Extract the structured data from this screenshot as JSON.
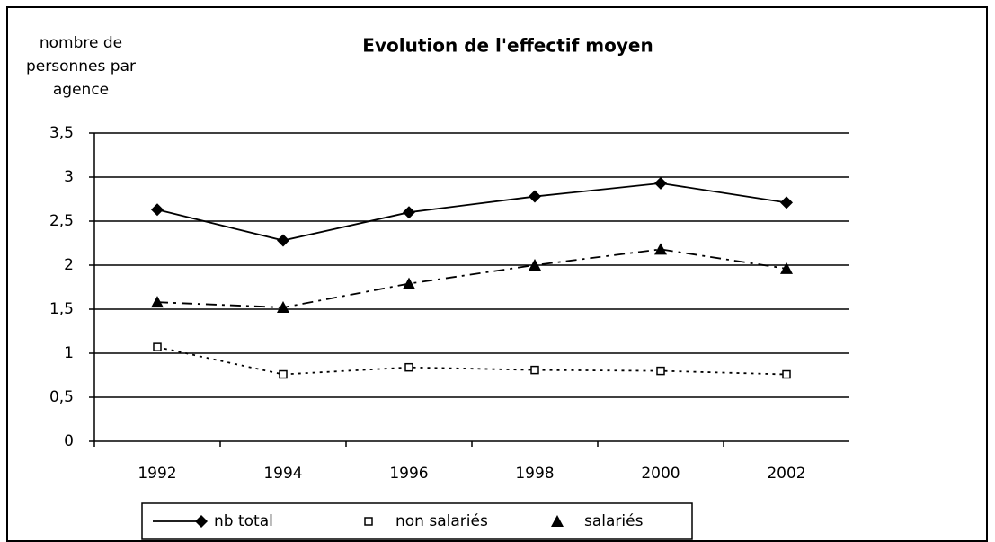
{
  "chart_data": {
    "type": "line",
    "title": "Evolution de l'effectif moyen",
    "ylabel": [
      "nombre de",
      "personnes par",
      "agence"
    ],
    "categories": [
      "1992",
      "1994",
      "1996",
      "1998",
      "2000",
      "2002"
    ],
    "series": [
      {
        "name": "nb total",
        "color": "#000000",
        "marker": "diamond",
        "dash": "solid",
        "values": [
          2.63,
          2.28,
          2.6,
          2.78,
          2.93,
          2.71
        ]
      },
      {
        "name": "non salariés",
        "color": "#000000",
        "marker": "square",
        "dash": "dotted",
        "values": [
          1.07,
          0.76,
          0.84,
          0.81,
          0.8,
          0.76
        ]
      },
      {
        "name": "salariés",
        "color": "#000000",
        "marker": "triangle",
        "dash": "dashdot",
        "values": [
          1.58,
          1.52,
          1.79,
          2.0,
          2.18,
          1.96
        ]
      }
    ],
    "ylim": [
      0,
      3.5
    ],
    "yticks": [
      0,
      {
        "value": 0.5,
        "label": "0,5"
      },
      1,
      {
        "value": 1.5,
        "label": "1,5"
      },
      2,
      {
        "value": 2.5,
        "label": "2,5"
      },
      3,
      {
        "value": 3.5,
        "label": "3,5"
      }
    ],
    "grid": true,
    "legend": "bottom"
  }
}
